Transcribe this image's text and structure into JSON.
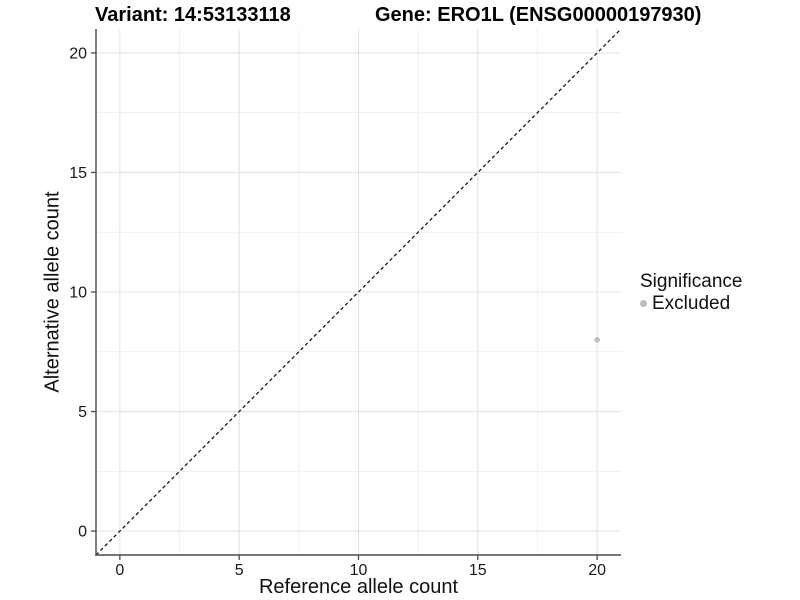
{
  "chart_data": {
    "type": "scatter",
    "titles": {
      "left": "Variant: 14:53133118",
      "right": "Gene: ERO1L (ENSG00000197930)"
    },
    "xlabel": "Reference allele count",
    "ylabel": "Alternative allele count",
    "xlim": [
      -1,
      21
    ],
    "ylim": [
      -1,
      21
    ],
    "xticks": [
      0,
      5,
      10,
      15,
      20
    ],
    "yticks": [
      0,
      5,
      10,
      15,
      20
    ],
    "minor_xticks": [
      2.5,
      7.5,
      12.5,
      17.5
    ],
    "minor_yticks": [
      2.5,
      7.5,
      12.5,
      17.5
    ],
    "grid": "major+minor",
    "points": [
      {
        "x": 20,
        "y": 8,
        "significance": "Excluded"
      }
    ],
    "reference_line": {
      "slope": 1,
      "intercept": 0,
      "style": "dashed",
      "color": "#1a1a1a"
    },
    "legend": {
      "title": "Significance",
      "position": "right",
      "items": [
        {
          "label": "Excluded",
          "color": "#bdbdbd"
        }
      ]
    },
    "colors": {
      "point": "#bdbdbd",
      "major_grid": "#e3e3e3",
      "minor_grid": "#f0f0f0",
      "axis": "#4a4a4a",
      "tick_label": "#1a1a1a",
      "title": "#000000"
    }
  }
}
